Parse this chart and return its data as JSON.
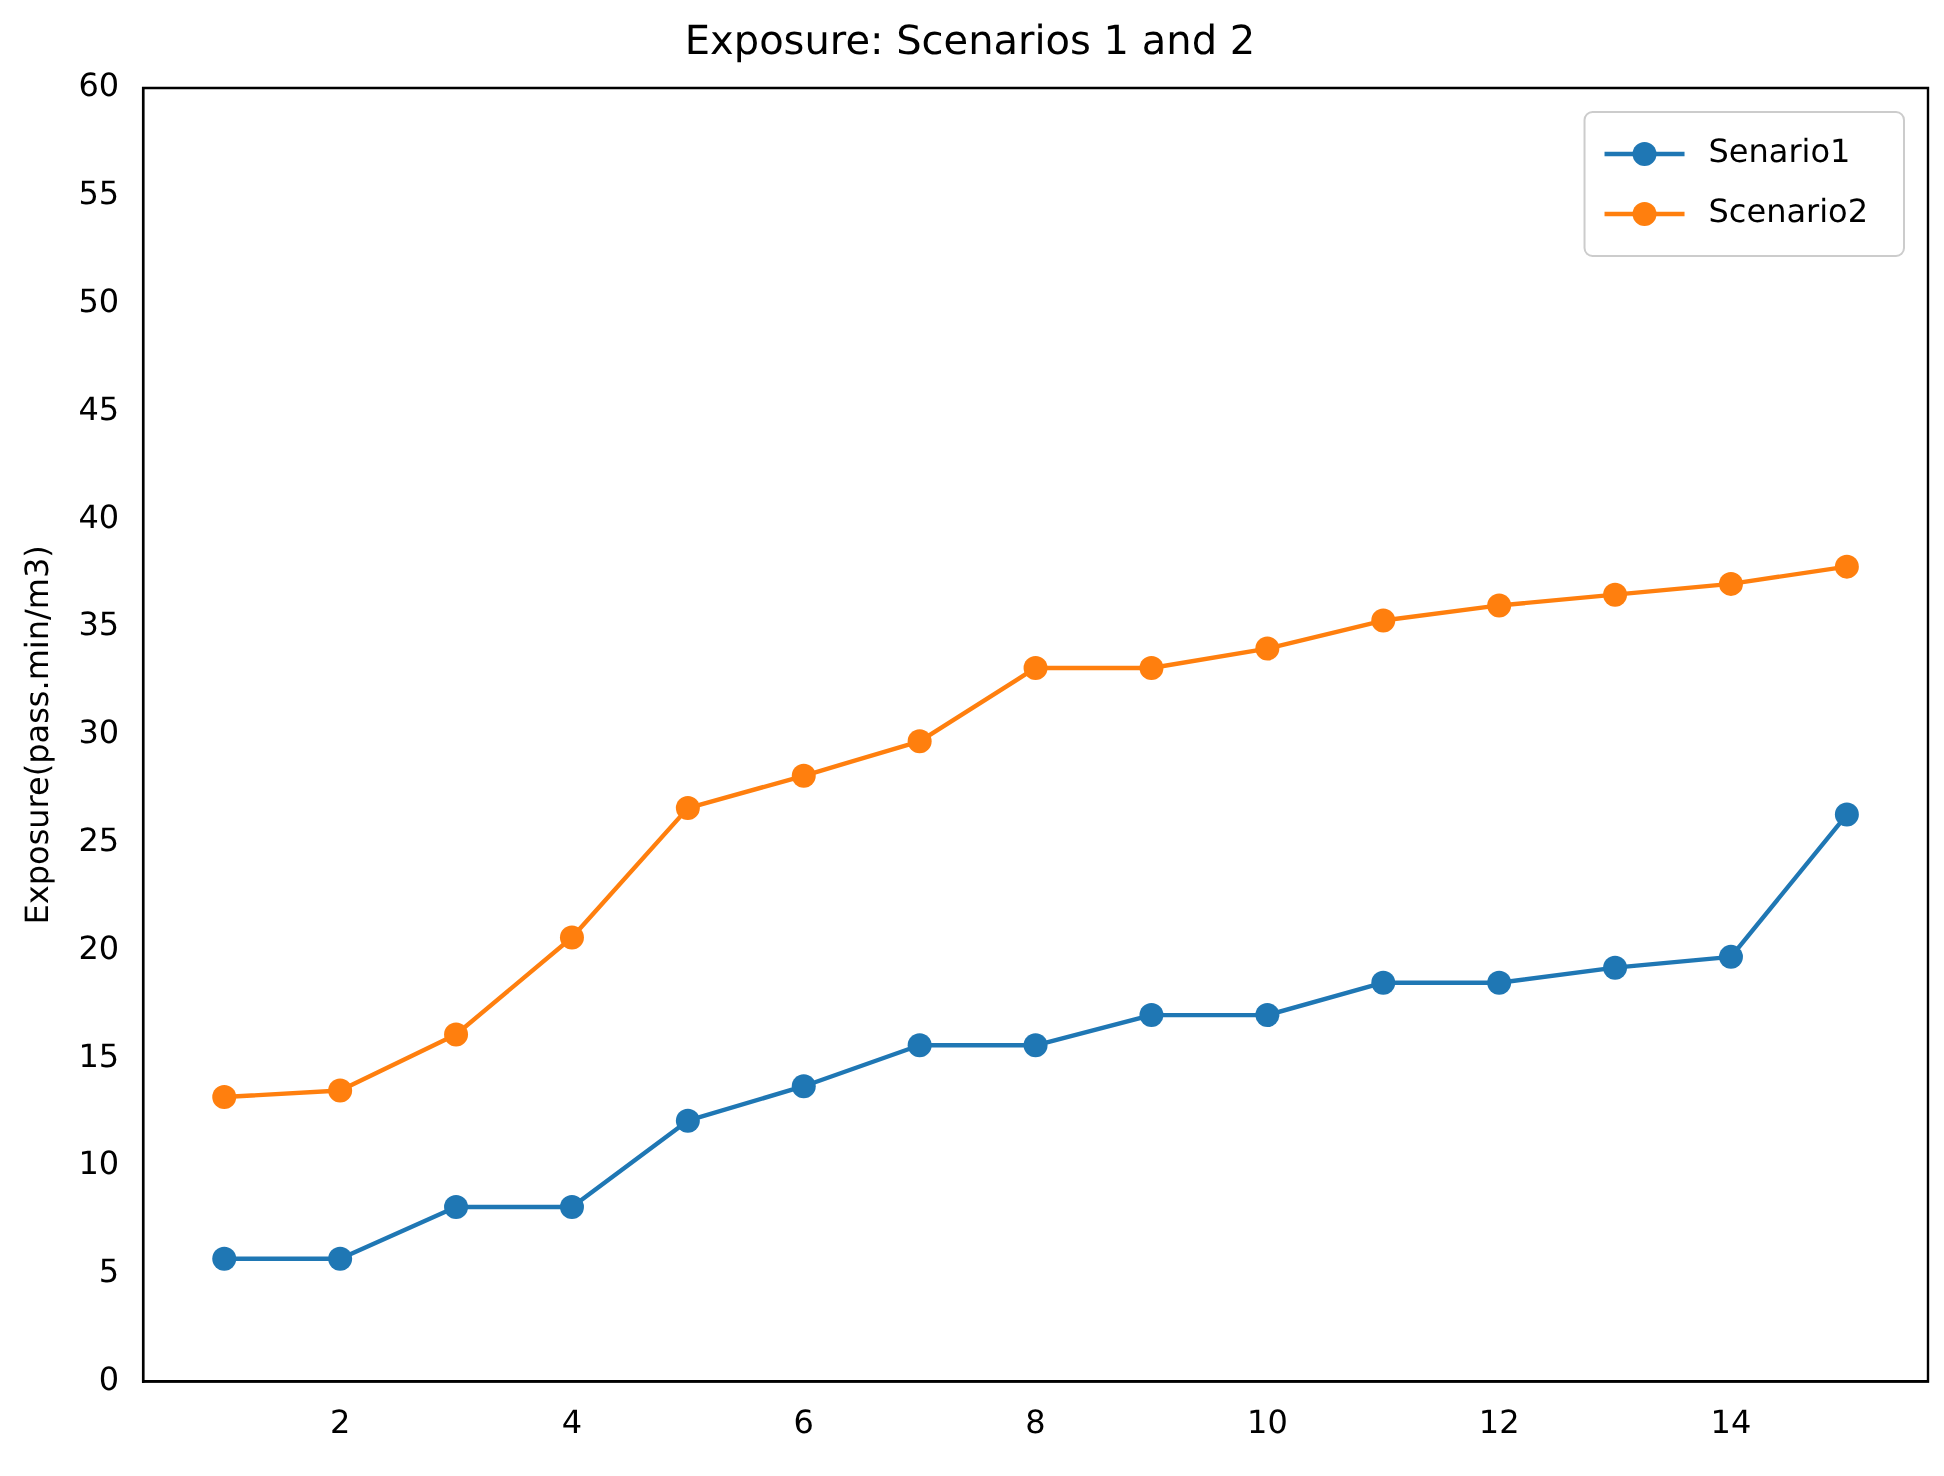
{
  "chart_data": {
    "type": "line",
    "title": "Exposure: Scenarios 1 and 2",
    "ylabel": "Exposure(pass.min/m3)",
    "x": [
      1,
      2,
      3,
      4,
      5,
      6,
      7,
      8,
      9,
      10,
      11,
      12,
      13,
      14,
      15
    ],
    "series": [
      {
        "name": "Senario1",
        "color": "#1f77b4",
        "values": [
          5.7,
          5.7,
          8.1,
          8.1,
          12.1,
          13.7,
          15.6,
          15.6,
          17.0,
          17.0,
          18.5,
          18.5,
          19.2,
          19.7,
          26.3
        ]
      },
      {
        "name": "Scenario2",
        "color": "#ff7f0e",
        "values": [
          13.2,
          13.5,
          16.1,
          20.6,
          26.6,
          28.1,
          29.7,
          33.1,
          33.1,
          34.0,
          35.3,
          36.0,
          36.5,
          37.0,
          37.8
        ]
      }
    ],
    "xlim": [
      0.3,
      15.7
    ],
    "xticks": [
      2,
      4,
      6,
      8,
      10,
      12,
      14
    ],
    "ylim": [
      0,
      60
    ],
    "yticks": [
      0,
      5,
      10,
      15,
      20,
      25,
      30,
      35,
      40,
      45,
      50,
      55,
      60
    ],
    "grid": false,
    "legend": "top right",
    "marker": "circle",
    "line_style": "solid"
  }
}
